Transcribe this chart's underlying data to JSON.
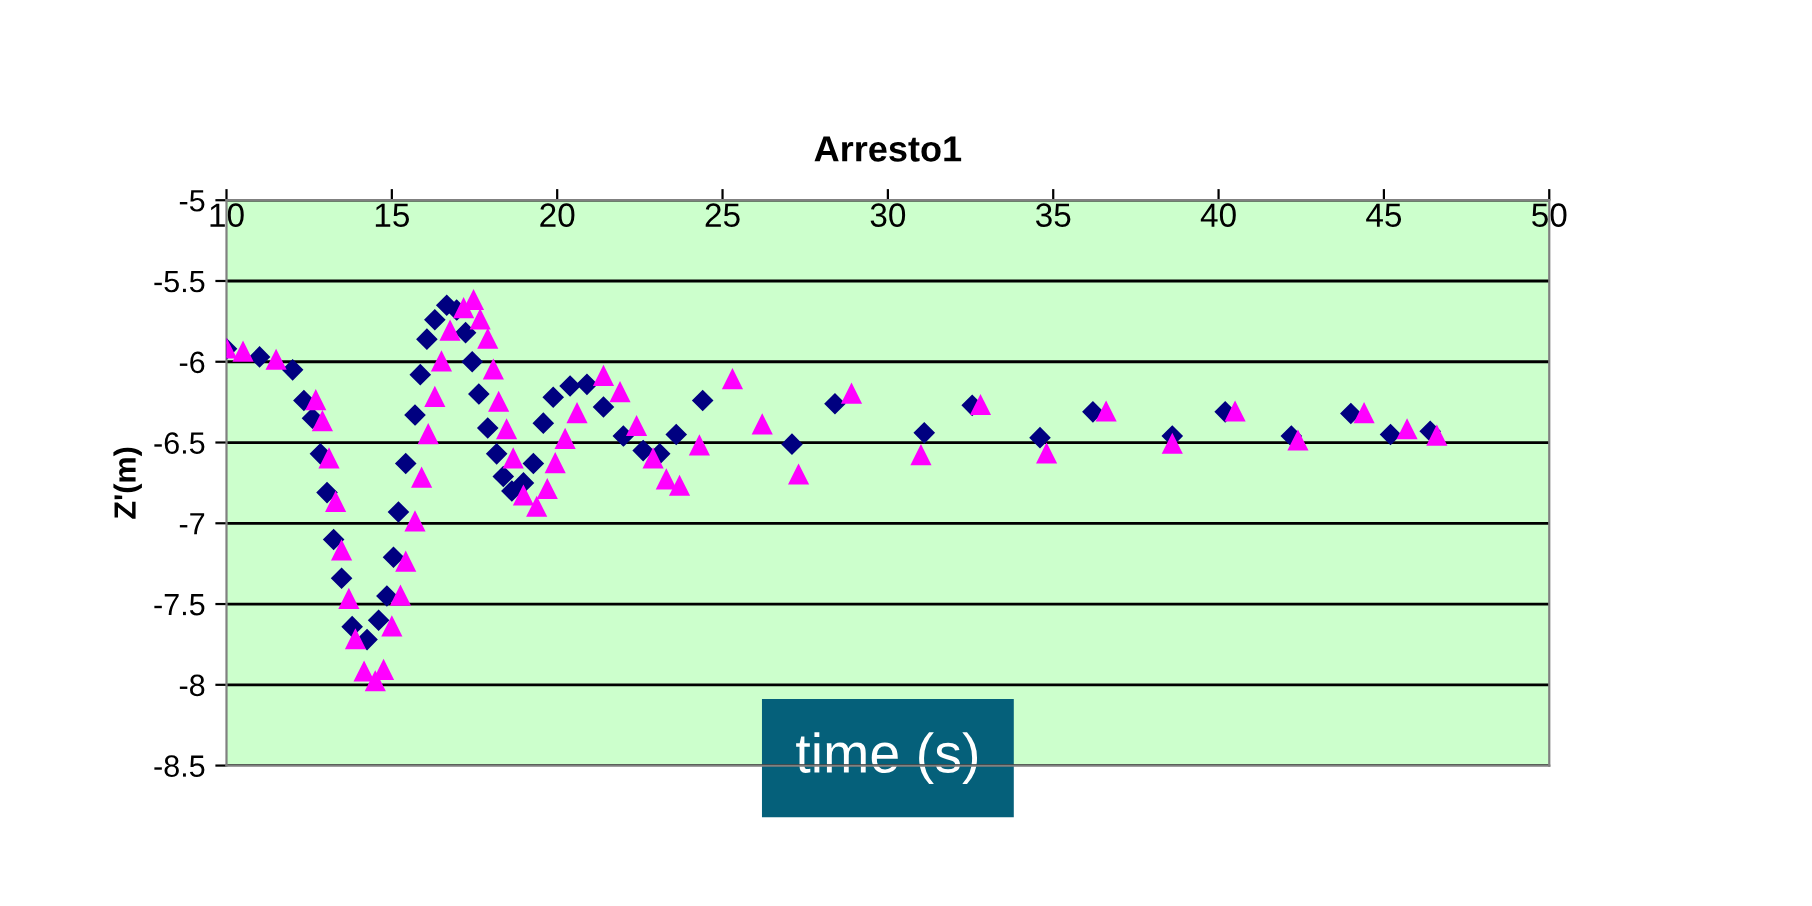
{
  "chart_data": {
    "type": "scatter",
    "title": "Arresto1",
    "xlabel": "time (s)",
    "ylabel": "Z'(m)",
    "xlim": [
      10,
      50
    ],
    "xticks": [
      10,
      15,
      20,
      25,
      30,
      35,
      40,
      45,
      50
    ],
    "ylim": [
      -8.5,
      -5
    ],
    "yticks": [
      -8.5,
      -8,
      -7.5,
      -7,
      -6.5,
      -6,
      -5.5,
      -5
    ],
    "grid": "y",
    "legend": false,
    "series": [
      {
        "color": "#000080",
        "marker": "diamond",
        "x": [
          10,
          11,
          12,
          12.34,
          12.6,
          12.84,
          13.04,
          13.24,
          13.48,
          13.8,
          14.25,
          14.6,
          14.85,
          15.05,
          15.2,
          15.42,
          15.7,
          15.86,
          16.06,
          16.3,
          16.66,
          16.96,
          17.23,
          17.43,
          17.63,
          17.9,
          18.17,
          18.37,
          18.63,
          18.98,
          19.28,
          19.58,
          19.88,
          20.39,
          20.9,
          21.4,
          22.0,
          22.6,
          23.1,
          23.6,
          24.4,
          27.1,
          28.4,
          31.1,
          32.55,
          34.6,
          36.2,
          38.6,
          40.2,
          42.2,
          44.0,
          45.2,
          46.4
        ],
        "values": [
          -5.92,
          -5.97,
          -6.05,
          -6.24,
          -6.35,
          -6.57,
          -6.81,
          -7.1,
          -7.34,
          -7.64,
          -7.72,
          -7.6,
          -7.45,
          -7.21,
          -6.93,
          -6.63,
          -6.33,
          -6.08,
          -5.86,
          -5.74,
          -5.65,
          -5.68,
          -5.82,
          -6.0,
          -6.2,
          -6.41,
          -6.57,
          -6.71,
          -6.8,
          -6.75,
          -6.63,
          -6.38,
          -6.22,
          -6.15,
          -6.14,
          -6.28,
          -6.46,
          -6.55,
          -6.57,
          -6.45,
          -6.24,
          -6.51,
          -6.26,
          -6.44,
          -6.27,
          -6.47,
          -6.31,
          -6.46,
          -6.31,
          -6.46,
          -6.32,
          -6.45,
          -6.43
        ]
      },
      {
        "color": "#ff00ff",
        "marker": "triangle",
        "x": [
          10,
          10.5,
          11.5,
          12.7,
          12.9,
          13.1,
          13.3,
          13.48,
          13.7,
          13.9,
          14.16,
          14.5,
          14.75,
          15.0,
          15.26,
          15.42,
          15.7,
          15.9,
          16.1,
          16.3,
          16.5,
          16.76,
          17.17,
          17.47,
          17.67,
          17.9,
          18.07,
          18.23,
          18.47,
          18.67,
          18.98,
          19.38,
          19.7,
          19.94,
          20.24,
          20.6,
          21.4,
          21.9,
          22.4,
          22.9,
          23.3,
          23.7,
          24.3,
          25.3,
          26.2,
          27.3,
          28.9,
          31.0,
          32.8,
          34.8,
          36.6,
          38.6,
          40.5,
          42.4,
          44.4,
          45.7,
          46.6
        ],
        "values": [
          -5.92,
          -5.94,
          -5.99,
          -6.24,
          -6.37,
          -6.6,
          -6.87,
          -7.17,
          -7.47,
          -7.72,
          -7.92,
          -7.98,
          -7.91,
          -7.64,
          -7.45,
          -7.24,
          -6.99,
          -6.72,
          -6.45,
          -6.22,
          -6.0,
          -5.81,
          -5.67,
          -5.62,
          -5.74,
          -5.86,
          -6.05,
          -6.25,
          -6.42,
          -6.6,
          -6.83,
          -6.9,
          -6.79,
          -6.63,
          -6.48,
          -6.32,
          -6.09,
          -6.19,
          -6.4,
          -6.6,
          -6.73,
          -6.77,
          -6.52,
          -6.11,
          -6.39,
          -6.7,
          -6.2,
          -6.58,
          -6.27,
          -6.57,
          -6.31,
          -6.51,
          -6.31,
          -6.49,
          -6.32,
          -6.42,
          -6.46
        ]
      }
    ]
  }
}
